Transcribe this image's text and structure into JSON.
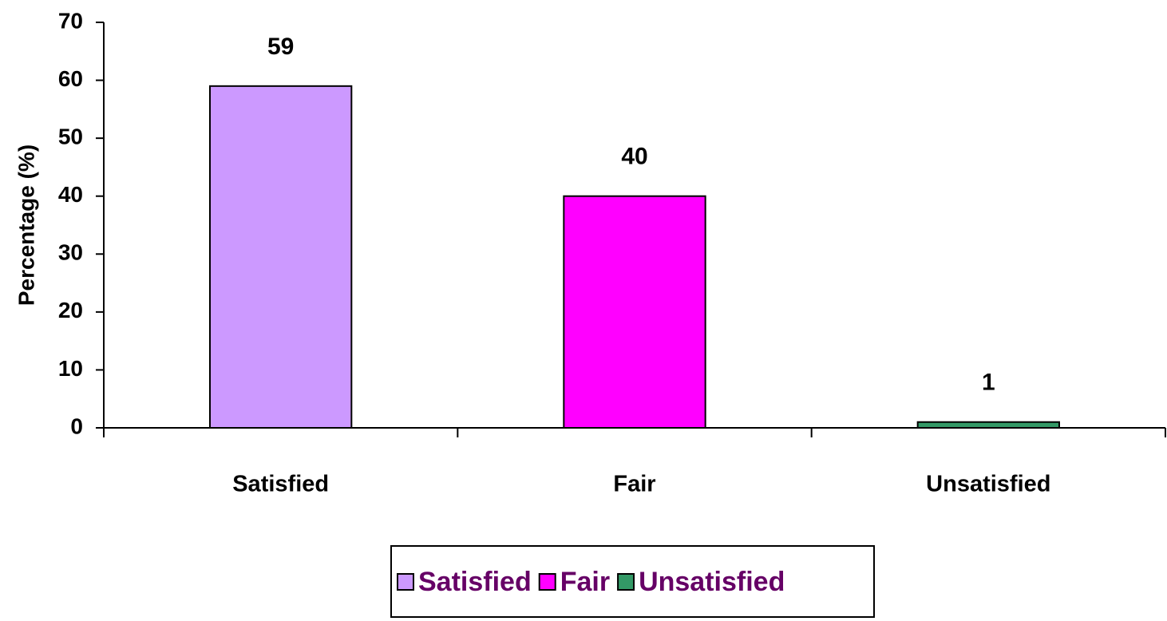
{
  "chart_data": {
    "type": "bar",
    "y_label": "Percentage (%)",
    "categories": [
      "Satisfied",
      "Fair",
      "Unsatisfied"
    ],
    "values": [
      59,
      40,
      1
    ],
    "colors": [
      "#cc99ff",
      "#ff00ff",
      "#339966"
    ],
    "ylim": [
      0,
      70
    ],
    "yticks": [
      0,
      10,
      20,
      30,
      40,
      50,
      60,
      70
    ],
    "legend": "bottom"
  }
}
